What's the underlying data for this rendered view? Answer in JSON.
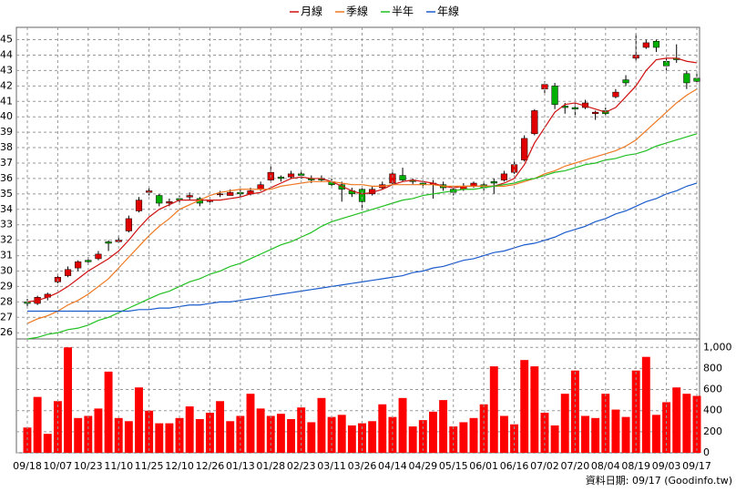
{
  "chart_data": [
    {
      "type": "candlestick",
      "ylim": [
        25.6,
        45.8
      ],
      "yticks": [
        26,
        27,
        28,
        29,
        30,
        31,
        32,
        33,
        34,
        35,
        36,
        37,
        38,
        39,
        40,
        41,
        42,
        43,
        44,
        45
      ],
      "grid": true,
      "up_color": "#e00000",
      "down_color": "#00b000",
      "ohlc": [
        [
          28.0,
          28.2,
          27.7,
          27.9
        ],
        [
          27.9,
          28.4,
          27.8,
          28.3
        ],
        [
          28.3,
          28.6,
          28.1,
          28.5
        ],
        [
          29.3,
          29.8,
          29.2,
          29.6
        ],
        [
          29.7,
          30.3,
          29.6,
          30.1
        ],
        [
          30.2,
          30.7,
          30.0,
          30.6
        ],
        [
          30.7,
          30.9,
          30.4,
          30.6
        ],
        [
          30.8,
          31.3,
          30.7,
          31.1
        ],
        [
          31.9,
          32.0,
          31.3,
          31.8
        ],
        [
          31.9,
          32.3,
          31.8,
          32.0
        ],
        [
          32.6,
          33.6,
          32.5,
          33.4
        ],
        [
          33.9,
          34.8,
          33.8,
          34.6
        ],
        [
          35.1,
          35.4,
          34.9,
          35.2
        ],
        [
          34.9,
          35.0,
          34.2,
          34.4
        ],
        [
          34.4,
          34.7,
          34.2,
          34.5
        ],
        [
          34.7,
          34.9,
          34.4,
          34.6
        ],
        [
          34.8,
          35.1,
          34.6,
          34.9
        ],
        [
          34.7,
          34.8,
          34.2,
          34.4
        ],
        [
          34.5,
          34.8,
          34.3,
          34.6
        ],
        [
          35.0,
          35.2,
          34.8,
          35.0
        ],
        [
          34.9,
          35.3,
          34.9,
          35.1
        ],
        [
          35.1,
          35.3,
          34.8,
          35.0
        ],
        [
          35.0,
          35.4,
          34.9,
          35.2
        ],
        [
          35.3,
          35.8,
          35.2,
          35.6
        ],
        [
          35.9,
          36.8,
          35.8,
          36.4
        ],
        [
          36.1,
          36.2,
          35.8,
          36.0
        ],
        [
          36.1,
          36.5,
          36.0,
          36.3
        ],
        [
          36.3,
          36.5,
          36.0,
          36.2
        ],
        [
          36.0,
          36.2,
          35.7,
          35.9
        ],
        [
          36.0,
          36.2,
          35.8,
          35.9
        ],
        [
          35.8,
          36.0,
          35.5,
          35.6
        ],
        [
          35.6,
          35.8,
          34.5,
          35.3
        ],
        [
          35.2,
          35.4,
          34.8,
          35.0
        ],
        [
          35.3,
          35.4,
          34.0,
          34.5
        ],
        [
          35.0,
          35.5,
          34.9,
          35.3
        ],
        [
          35.4,
          35.8,
          35.3,
          35.6
        ],
        [
          35.7,
          36.6,
          35.6,
          36.3
        ],
        [
          36.2,
          36.7,
          35.8,
          35.9
        ],
        [
          35.9,
          36.0,
          35.6,
          35.8
        ],
        [
          35.7,
          35.9,
          35.4,
          35.6
        ],
        [
          35.6,
          35.9,
          34.7,
          35.7
        ],
        [
          35.6,
          35.8,
          35.2,
          35.4
        ],
        [
          35.3,
          35.4,
          34.9,
          35.1
        ],
        [
          35.3,
          35.7,
          35.2,
          35.5
        ],
        [
          35.5,
          35.8,
          35.4,
          35.7
        ],
        [
          35.6,
          35.8,
          35.2,
          35.4
        ],
        [
          35.8,
          36.0,
          35.0,
          35.7
        ],
        [
          35.9,
          36.5,
          35.8,
          36.3
        ],
        [
          36.4,
          37.1,
          36.3,
          36.9
        ],
        [
          37.2,
          38.8,
          37.1,
          38.6
        ],
        [
          38.9,
          40.5,
          38.8,
          40.4
        ],
        [
          41.8,
          42.3,
          41.5,
          42.1
        ],
        [
          42.0,
          42.2,
          40.5,
          40.8
        ],
        [
          40.7,
          40.9,
          40.2,
          40.6
        ],
        [
          40.6,
          40.9,
          40.1,
          40.5
        ],
        [
          40.6,
          41.1,
          40.5,
          40.9
        ],
        [
          40.2,
          40.4,
          39.8,
          40.3
        ],
        [
          40.4,
          40.6,
          40.1,
          40.2
        ],
        [
          41.3,
          41.8,
          41.2,
          41.6
        ],
        [
          42.4,
          42.7,
          42.0,
          42.2
        ],
        [
          43.8,
          45.4,
          43.6,
          44.0
        ],
        [
          44.5,
          45.0,
          44.4,
          44.8
        ],
        [
          44.9,
          45.0,
          44.2,
          44.5
        ],
        [
          43.6,
          43.8,
          43.0,
          43.3
        ],
        [
          43.8,
          44.7,
          43.5,
          43.7
        ],
        [
          42.8,
          43.0,
          41.8,
          42.2
        ],
        [
          42.5,
          42.9,
          42.2,
          42.3
        ]
      ],
      "series": [
        {
          "name": "月線",
          "color": "#d01010",
          "values": [
            28.0,
            28.1,
            28.3,
            28.6,
            29.0,
            29.5,
            30.0,
            30.4,
            30.8,
            31.3,
            32.0,
            32.8,
            33.5,
            34.0,
            34.3,
            34.6,
            34.6,
            34.6,
            34.6,
            34.6,
            34.7,
            34.8,
            35.0,
            35.1,
            35.4,
            35.7,
            36.0,
            36.1,
            36.0,
            36.0,
            35.8,
            35.5,
            35.2,
            35.0,
            35.1,
            35.3,
            35.6,
            35.8,
            35.9,
            35.8,
            35.7,
            35.5,
            35.4,
            35.5,
            35.5,
            35.5,
            35.5,
            35.7,
            36.0,
            36.9,
            38.3,
            39.3,
            40.3,
            40.8,
            40.9,
            40.7,
            40.5,
            40.3,
            40.6,
            41.3,
            42.0,
            43.0,
            43.7,
            43.8,
            43.8,
            43.6,
            43.5
          ]
        },
        {
          "name": "季線",
          "color": "#f07820",
          "values": [
            26.6,
            26.9,
            27.1,
            27.4,
            27.8,
            28.1,
            28.5,
            29.0,
            29.5,
            30.2,
            30.9,
            31.6,
            32.3,
            32.9,
            33.4,
            34.0,
            34.3,
            34.6,
            34.9,
            35.1,
            35.2,
            35.3,
            35.3,
            35.3,
            35.3,
            35.5,
            35.6,
            35.7,
            35.8,
            35.8,
            35.8,
            35.7,
            35.6,
            35.6,
            35.5,
            35.5,
            35.6,
            35.6,
            35.6,
            35.6,
            35.6,
            35.5,
            35.5,
            35.5,
            35.5,
            35.5,
            35.5,
            35.5,
            35.6,
            35.8,
            36.0,
            36.3,
            36.5,
            36.8,
            37.0,
            37.2,
            37.4,
            37.6,
            37.8,
            38.1,
            38.5,
            39.1,
            39.7,
            40.3,
            40.9,
            41.4,
            41.8
          ]
        },
        {
          "name": "半年",
          "color": "#20c020",
          "values": [
            25.6,
            25.7,
            25.9,
            26.0,
            26.2,
            26.3,
            26.5,
            26.8,
            27.0,
            27.3,
            27.6,
            27.9,
            28.2,
            28.5,
            28.7,
            29.0,
            29.3,
            29.5,
            29.8,
            30.0,
            30.3,
            30.5,
            30.8,
            31.1,
            31.4,
            31.7,
            31.9,
            32.2,
            32.5,
            32.9,
            33.2,
            33.4,
            33.6,
            33.8,
            34.0,
            34.2,
            34.4,
            34.6,
            34.7,
            34.9,
            35.0,
            35.1,
            35.2,
            35.3,
            35.3,
            35.4,
            35.5,
            35.6,
            35.7,
            35.9,
            36.0,
            36.2,
            36.4,
            36.5,
            36.7,
            36.9,
            37.0,
            37.2,
            37.3,
            37.5,
            37.6,
            37.8,
            38.1,
            38.3,
            38.5,
            38.7,
            38.9
          ]
        },
        {
          "name": "年線",
          "color": "#1a5ccc",
          "values": [
            27.4,
            27.4,
            27.4,
            27.4,
            27.4,
            27.4,
            27.4,
            27.4,
            27.4,
            27.4,
            27.4,
            27.5,
            27.5,
            27.6,
            27.6,
            27.7,
            27.8,
            27.8,
            27.9,
            28.0,
            28.0,
            28.1,
            28.2,
            28.3,
            28.4,
            28.5,
            28.6,
            28.7,
            28.8,
            28.9,
            29.0,
            29.1,
            29.2,
            29.3,
            29.4,
            29.5,
            29.6,
            29.7,
            29.9,
            30.0,
            30.2,
            30.3,
            30.5,
            30.7,
            30.8,
            31.0,
            31.2,
            31.3,
            31.5,
            31.7,
            31.8,
            32.0,
            32.2,
            32.5,
            32.7,
            32.9,
            33.2,
            33.4,
            33.7,
            33.9,
            34.2,
            34.5,
            34.7,
            35.0,
            35.2,
            35.5,
            35.7
          ]
        }
      ]
    },
    {
      "type": "bar",
      "color": "#ff0000",
      "ylim": [
        0,
        1080
      ],
      "yticks": [
        0,
        200,
        400,
        600,
        800,
        {
          "value": 1000,
          "label": "1,000"
        }
      ],
      "grid": true,
      "categories": [
        "09/18",
        null,
        null,
        "10/07",
        null,
        null,
        "10/23",
        null,
        null,
        "11/10",
        null,
        null,
        "11/25",
        null,
        null,
        "12/10",
        null,
        null,
        "12/26",
        null,
        null,
        "01/13",
        null,
        null,
        "01/28",
        null,
        null,
        "02/23",
        null,
        null,
        "03/11",
        null,
        null,
        "03/26",
        null,
        null,
        "04/14",
        null,
        null,
        "04/29",
        null,
        null,
        "05/15",
        null,
        null,
        "06/01",
        null,
        null,
        "06/16",
        null,
        null,
        "07/02",
        null,
        null,
        "07/20",
        null,
        null,
        "08/04",
        null,
        null,
        "08/19",
        null,
        null,
        "09/03",
        null,
        null,
        "09/17"
      ],
      "values": [
        240,
        530,
        180,
        490,
        1000,
        330,
        350,
        420,
        770,
        330,
        300,
        620,
        400,
        280,
        280,
        330,
        440,
        320,
        380,
        490,
        300,
        350,
        560,
        420,
        350,
        370,
        320,
        430,
        290,
        520,
        340,
        360,
        260,
        280,
        300,
        460,
        340,
        520,
        250,
        310,
        390,
        500,
        250,
        290,
        330,
        460,
        820,
        350,
        270,
        880,
        820,
        380,
        260,
        560,
        780,
        350,
        330,
        560,
        410,
        340,
        780,
        910,
        360,
        480,
        620,
        560,
        540
      ]
    }
  ],
  "footer": "資料日期: 09/17  (Goodinfo.tw)"
}
